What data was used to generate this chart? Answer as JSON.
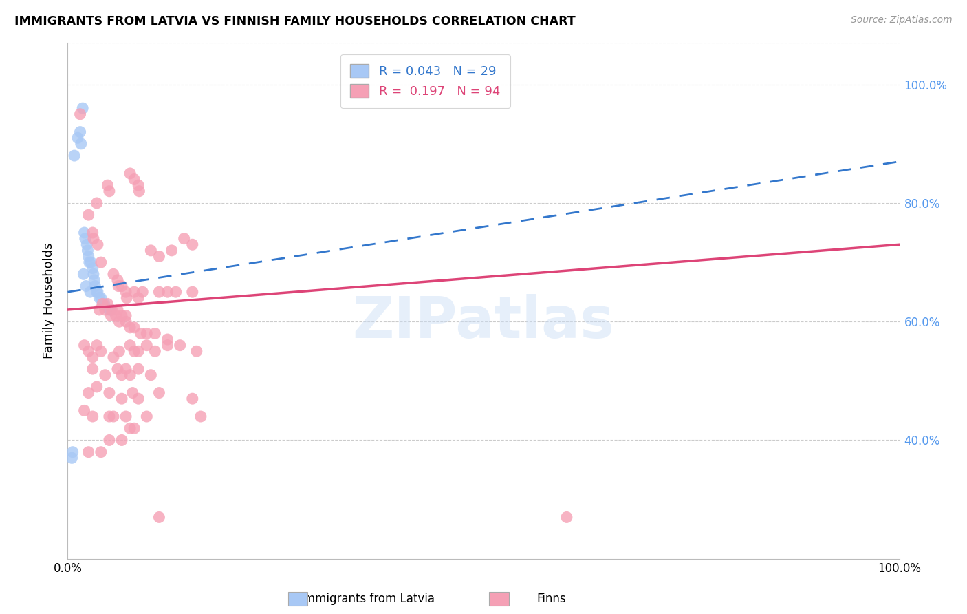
{
  "title": "IMMIGRANTS FROM LATVIA VS FINNISH FAMILY HOUSEHOLDS CORRELATION CHART",
  "source": "Source: ZipAtlas.com",
  "ylabel": "Family Households",
  "legend_label_blue": "Immigrants from Latvia",
  "legend_label_pink": "Finns",
  "r_blue": 0.043,
  "n_blue": 29,
  "r_pink": 0.197,
  "n_pink": 94,
  "watermark": "ZIPatlas",
  "blue_points_x": [
    0.8,
    1.2,
    1.5,
    1.6,
    2.0,
    2.1,
    2.3,
    2.4,
    2.5,
    2.6,
    2.8,
    3.0,
    3.1,
    3.2,
    3.3,
    3.5,
    3.6,
    3.8,
    4.0,
    4.2,
    4.4,
    5.0,
    5.2,
    0.5,
    0.6,
    1.8,
    1.9,
    2.2,
    2.7
  ],
  "blue_points_y": [
    88,
    91,
    92,
    90,
    75,
    74,
    73,
    72,
    71,
    70,
    70,
    69,
    68,
    67,
    66,
    65,
    65,
    64,
    64,
    63,
    63,
    62,
    62,
    37,
    38,
    96,
    68,
    66,
    65
  ],
  "pink_points_x": [
    1.5,
    3.5,
    4.8,
    5.0,
    2.5,
    3.0,
    3.1,
    3.6,
    7.5,
    8.0,
    8.5,
    8.6,
    10.0,
    11.0,
    12.5,
    14.0,
    15.0,
    4.0,
    5.5,
    6.0,
    6.1,
    6.5,
    7.0,
    7.1,
    8.0,
    8.5,
    9.0,
    11.0,
    12.0,
    13.0,
    15.0,
    3.8,
    4.5,
    5.2,
    5.8,
    6.2,
    7.0,
    7.5,
    8.0,
    8.8,
    9.5,
    10.5,
    12.0,
    13.5,
    4.2,
    4.8,
    5.3,
    6.0,
    6.5,
    7.0,
    2.0,
    2.5,
    3.0,
    3.5,
    4.0,
    5.5,
    6.2,
    7.5,
    8.0,
    8.5,
    9.5,
    10.5,
    12.0,
    15.5,
    3.0,
    4.5,
    6.0,
    6.5,
    7.0,
    7.5,
    8.5,
    10.0,
    2.5,
    3.5,
    5.0,
    6.5,
    7.8,
    8.5,
    11.0,
    15.0,
    2.0,
    3.0,
    5.5,
    5.0,
    7.0,
    9.5,
    16.0,
    5.0,
    6.5,
    7.5,
    8.0,
    2.5,
    4.0,
    11.0,
    60.0
  ],
  "pink_points_y": [
    95,
    80,
    83,
    82,
    78,
    75,
    74,
    73,
    85,
    84,
    83,
    82,
    72,
    71,
    72,
    74,
    73,
    70,
    68,
    67,
    66,
    66,
    65,
    64,
    65,
    64,
    65,
    65,
    65,
    65,
    65,
    62,
    62,
    61,
    61,
    60,
    60,
    59,
    59,
    58,
    58,
    58,
    57,
    56,
    63,
    63,
    62,
    62,
    61,
    61,
    56,
    55,
    54,
    56,
    55,
    54,
    55,
    56,
    55,
    55,
    56,
    55,
    56,
    55,
    52,
    51,
    52,
    51,
    52,
    51,
    52,
    51,
    48,
    49,
    48,
    47,
    48,
    47,
    48,
    47,
    45,
    44,
    44,
    44,
    44,
    44,
    44,
    40,
    40,
    42,
    42,
    38,
    38,
    27,
    27
  ],
  "ylim": [
    20,
    107
  ],
  "xlim": [
    0,
    100
  ],
  "ytick_values": [
    40,
    60,
    80,
    100
  ],
  "xtick_values": [
    0,
    100
  ],
  "xtick_labels": [
    "0.0%",
    "100.0%"
  ],
  "ytick_right_labels": [
    "40.0%",
    "60.0%",
    "80.0%",
    "100.0%"
  ],
  "grid_color": "#cccccc",
  "blue_color": "#a8c8f5",
  "pink_color": "#f5a0b5",
  "blue_line_color": "#3377cc",
  "pink_line_color": "#dd4477",
  "right_axis_color": "#5599ee"
}
